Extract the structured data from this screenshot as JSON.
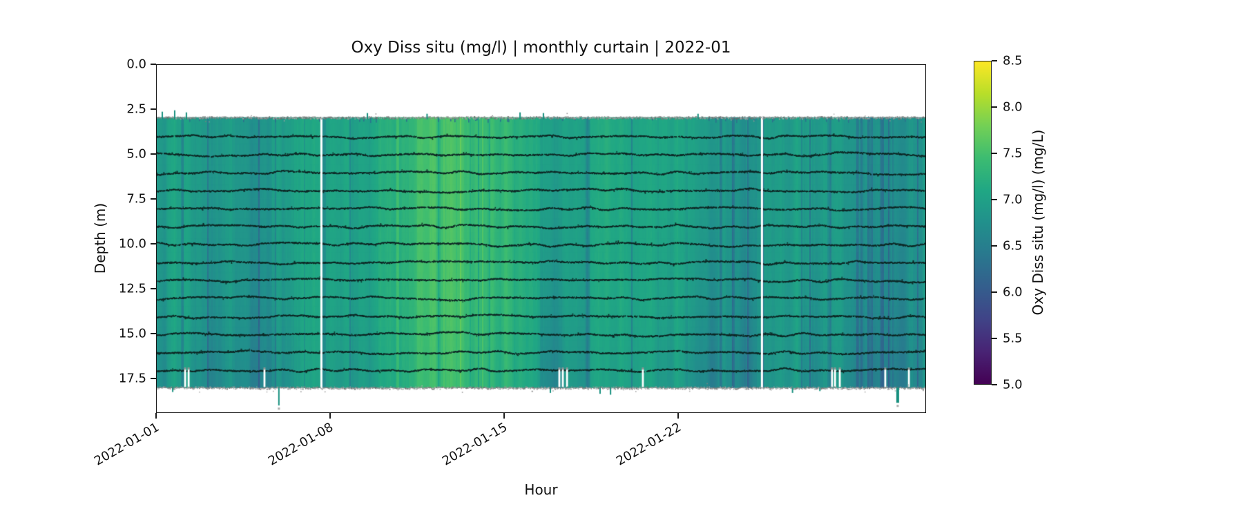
{
  "title": "Oxy Diss situ (mg/l) | monthly curtain | 2022-01",
  "axes": {
    "xlabel": "Hour",
    "ylabel": "Depth (m)",
    "x_tick_labels": [
      "2022-01-01",
      "2022-01-08",
      "2022-01-15",
      "2022-01-22"
    ],
    "x_tick_days": [
      0,
      7,
      14,
      21
    ],
    "y_ticks": [
      "0.0",
      "2.5",
      "5.0",
      "7.5",
      "10.0",
      "12.5",
      "15.0",
      "17.5"
    ],
    "y_tick_values": [
      0,
      2.5,
      5,
      7.5,
      10,
      12.5,
      15,
      17.5
    ],
    "ylim": [
      0,
      19.42
    ],
    "xlim_days": [
      0,
      30.97
    ]
  },
  "colorbar": {
    "label": "Oxy Diss situ (mg/l) (mg/L)",
    "tick_labels": [
      "8.5",
      "8.0",
      "7.5",
      "7.0",
      "6.5",
      "6.0",
      "5.5",
      "5.0"
    ],
    "tick_values": [
      8.5,
      8.0,
      7.5,
      7.0,
      6.5,
      6.0,
      5.5,
      5.0
    ],
    "vmin": 5.0,
    "vmax": 8.5,
    "colormap": "viridis",
    "viridis_stops": [
      [
        68,
        1,
        84
      ],
      [
        72,
        35,
        116
      ],
      [
        64,
        67,
        135
      ],
      [
        52,
        94,
        141
      ],
      [
        41,
        120,
        142
      ],
      [
        33,
        144,
        140
      ],
      [
        32,
        167,
        132
      ],
      [
        60,
        188,
        113
      ],
      [
        115,
        208,
        85
      ],
      [
        184,
        222,
        41
      ],
      [
        253,
        231,
        37
      ]
    ]
  },
  "chart_data": {
    "type": "heatmap",
    "title": "Oxy Diss situ (mg/l) | monthly curtain | 2022-01",
    "xlabel": "Hour",
    "ylabel": "Depth (m)",
    "x_unit": "days since 2022-01-01",
    "depth_top_m": 2.95,
    "depth_bottom_m": 18.0,
    "base_series": {
      "days": [
        0,
        0.5,
        1,
        2,
        3,
        4,
        5,
        6,
        7,
        8,
        9,
        10,
        10.5,
        11,
        11.5,
        12,
        12.5,
        13,
        13.5,
        14,
        15,
        16,
        17,
        18,
        19,
        20,
        21,
        22,
        23,
        24,
        25,
        26,
        27,
        28,
        29,
        30,
        31
      ],
      "values": [
        7.0,
        7.1,
        7.05,
        6.9,
        6.95,
        6.9,
        7.05,
        7.1,
        7.05,
        7.1,
        7.15,
        7.3,
        7.4,
        7.5,
        7.55,
        7.55,
        7.5,
        7.45,
        7.4,
        7.3,
        7.2,
        7.1,
        7.05,
        7.15,
        7.1,
        7.1,
        7.05,
        7.0,
        6.9,
        6.85,
        6.9,
        6.95,
        7.0,
        6.95,
        6.9,
        6.85,
        6.9
      ]
    },
    "bright_lines_days": [
      9.7
    ],
    "sensor_line_depths_m": [
      4,
      5,
      6,
      7,
      8,
      9,
      10,
      11,
      12,
      13,
      14,
      15,
      16,
      17
    ],
    "speckle_edge_depths_m": [
      2.95,
      18.0
    ],
    "gaps_full_days": [
      6.65,
      24.37
    ],
    "gaps_partial": {
      "days": [
        1.17,
        1.31,
        4.36,
        16.22,
        16.36,
        16.53,
        19.58,
        27.19,
        27.31,
        27.5,
        29.33,
        30.28
      ],
      "depth_from": 17.0,
      "depth_to": 17.97
    },
    "spikes_below": [
      {
        "day": 0.67,
        "depth_to": 18.25,
        "w": 2,
        "dot": false
      },
      {
        "day": 4.94,
        "depth_to": 19.0,
        "w": 2,
        "dot": true
      },
      {
        "day": 15.86,
        "depth_to": 18.3,
        "w": 2,
        "dot": false
      },
      {
        "day": 17.86,
        "depth_to": 18.35,
        "w": 2,
        "dot": false
      },
      {
        "day": 18.28,
        "depth_to": 18.4,
        "w": 2,
        "dot": false
      },
      {
        "day": 25.6,
        "depth_to": 18.3,
        "w": 2,
        "dot": false
      },
      {
        "day": 26.7,
        "depth_to": 18.2,
        "w": 2,
        "dot": false
      },
      {
        "day": 29.83,
        "depth_to": 18.85,
        "w": 4,
        "dot": true
      }
    ],
    "ticks_above_top": [
      {
        "day": 0.25,
        "h": 8
      },
      {
        "day": 0.75,
        "h": 10
      },
      {
        "day": 1.22,
        "h": 7
      },
      {
        "day": 8.5,
        "h": 6
      },
      {
        "day": 10.9,
        "h": 5
      },
      {
        "day": 14.64,
        "h": 7
      },
      {
        "day": 15.58,
        "h": 6
      },
      {
        "day": 21.8,
        "h": 5
      }
    ],
    "texture": {
      "seed": 7,
      "stripe_amps": [
        0.03,
        0.03,
        0.035
      ],
      "stripe_freqs": [
        0.3,
        0.113,
        0.045
      ],
      "block_sizes": [
        14,
        5
      ],
      "block_amps": [
        0.13,
        0.08
      ],
      "micro_amp": 0.05,
      "streak_prob_by_day": [
        [
          0,
          2,
          0.08
        ],
        [
          2,
          5,
          0.1
        ],
        [
          5,
          9,
          0.06
        ],
        [
          9,
          15,
          0.03
        ],
        [
          15,
          21.5,
          0.07
        ],
        [
          21.5,
          28.5,
          0.1
        ],
        [
          28.5,
          31,
          0.14
        ]
      ],
      "streak_dark_min": 0.18,
      "streak_dark_max": 0.55,
      "dark_patches": [
        {
          "day_from": 0.0,
          "day_to": 1.6,
          "amp_top": 0.14,
          "amp_bottom": 0.36
        },
        {
          "day_from": 2.0,
          "day_to": 4.8,
          "amp_top": 0.12,
          "amp_bottom": 0.42
        },
        {
          "day_from": 5.0,
          "day_to": 9.5,
          "amp_top": 0.05,
          "amp_bottom": 0.25
        },
        {
          "day_from": 9.5,
          "day_to": 15.2,
          "amp_top": 0.03,
          "amp_bottom": 0.16
        },
        {
          "day_from": 15.2,
          "day_to": 21.3,
          "amp_top": 0.06,
          "amp_bottom": 0.38
        },
        {
          "day_from": 21.3,
          "day_to": 26.0,
          "amp_top": 0.13,
          "amp_bottom": 0.6
        },
        {
          "day_from": 26.0,
          "day_to": 28.6,
          "amp_top": 0.08,
          "amp_bottom": 0.38
        },
        {
          "day_from": 28.6,
          "day_to": 30.8,
          "amp_top": 0.3,
          "amp_bottom": 0.65
        }
      ],
      "bright_band": [
        10.4,
        13.6
      ],
      "bright_line_prob": 0.12,
      "bright_line_amp": 0.16
    },
    "spike_color": "#18907f",
    "speckle_gray": 135,
    "sensor_line_color": [
      13,
      38,
      36
    ]
  }
}
